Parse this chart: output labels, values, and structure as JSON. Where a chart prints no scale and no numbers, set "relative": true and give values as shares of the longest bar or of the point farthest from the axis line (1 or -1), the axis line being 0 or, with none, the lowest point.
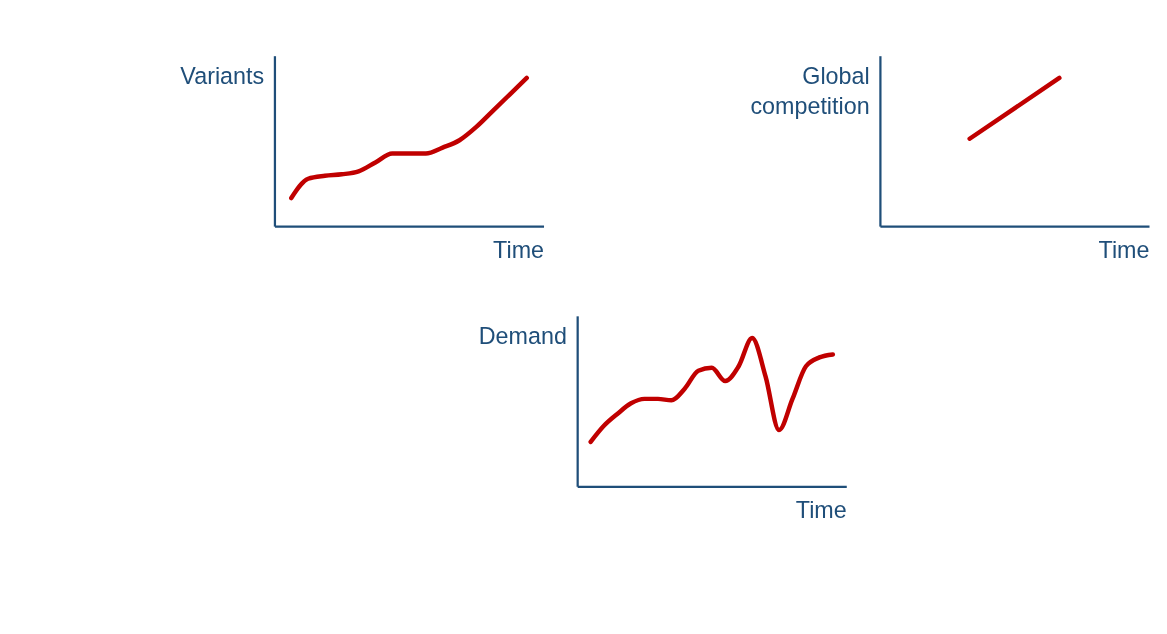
{
  "chart_data": [
    {
      "type": "line",
      "relative": true,
      "ylabel": "Variants",
      "xlabel": "Time",
      "color": "#c00000",
      "categories": [
        null,
        null,
        null,
        null,
        null,
        null,
        null,
        null,
        null,
        null,
        null,
        null,
        null,
        null,
        null
      ],
      "values": [
        0.19,
        0.32,
        0.34,
        0.35,
        0.37,
        0.43,
        0.49,
        0.49,
        0.49,
        0.53,
        0.58,
        0.67,
        0.78,
        0.89,
        1.0
      ]
    },
    {
      "type": "line",
      "relative": true,
      "ylabel": "Global competition",
      "xlabel": "Time",
      "color": "#c00000",
      "categories": [
        null,
        null
      ],
      "values": [
        0.59,
        1.0
      ]
    },
    {
      "type": "line",
      "relative": true,
      "ylabel": "Demand",
      "xlabel": "Time",
      "color": "#c00000",
      "categories": [
        null,
        null,
        null,
        null,
        null,
        null,
        null,
        null,
        null,
        null,
        null,
        null,
        null,
        null,
        null,
        null,
        null,
        null,
        null
      ],
      "values": [
        0.3,
        0.41,
        0.49,
        0.56,
        0.59,
        0.59,
        0.58,
        0.66,
        0.78,
        0.8,
        0.71,
        0.81,
        1.0,
        0.74,
        0.38,
        0.59,
        0.81,
        0.87,
        0.89
      ]
    }
  ]
}
